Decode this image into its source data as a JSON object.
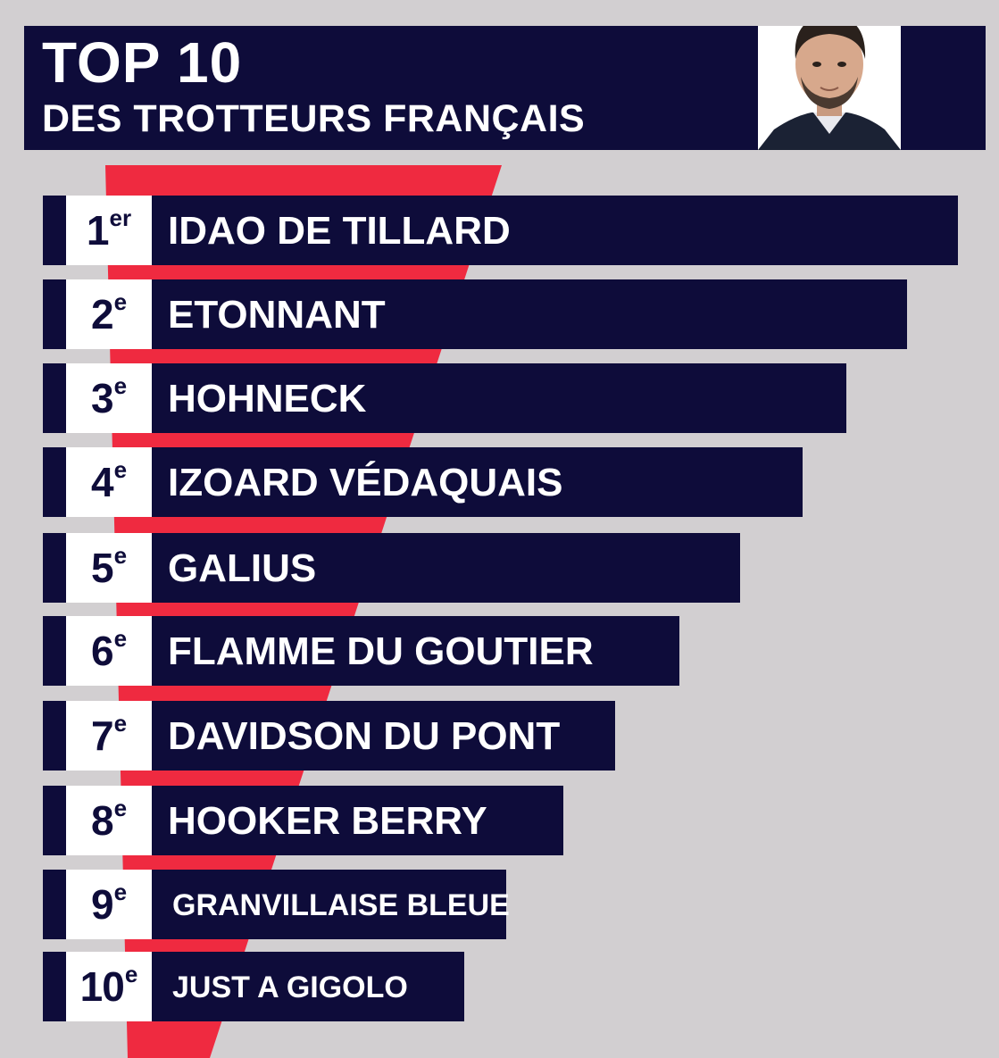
{
  "header": {
    "title": "TOP 10",
    "subtitle": "DES TROTTEURS FRANÇAIS"
  },
  "colors": {
    "background": "#d2cfd1",
    "navy": "#0e0c3a",
    "red": "#ef2a40",
    "white": "#ffffff"
  },
  "ranking": [
    {
      "rank": "1",
      "suffix": "er",
      "name": "IDAO DE TILLARD"
    },
    {
      "rank": "2",
      "suffix": "e",
      "name": "ETONNANT"
    },
    {
      "rank": "3",
      "suffix": "e",
      "name": "HOHNECK"
    },
    {
      "rank": "4",
      "suffix": "e",
      "name": "IZOARD VÉDAQUAIS"
    },
    {
      "rank": "5",
      "suffix": "e",
      "name": "GALIUS"
    },
    {
      "rank": "6",
      "suffix": "e",
      "name": "FLAMME DU GOUTIER"
    },
    {
      "rank": "7",
      "suffix": "e",
      "name": "DAVIDSON DU PONT"
    },
    {
      "rank": "8",
      "suffix": "e",
      "name": "HOOKER BERRY"
    },
    {
      "rank": "9",
      "suffix": "e",
      "name": "GRANVILLAISE BLEUE"
    },
    {
      "rank": "10",
      "suffix": "e",
      "name": "JUST A GIGOLO"
    }
  ]
}
